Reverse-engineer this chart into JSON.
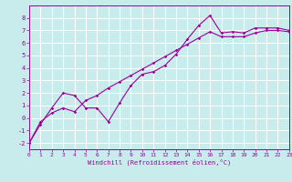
{
  "xlabel": "Windchill (Refroidissement éolien,°C)",
  "bg_color": "#c8ecec",
  "line_color": "#990099",
  "grid_color": "#ffffff",
  "x_series1": [
    0,
    1,
    2,
    3,
    4,
    5,
    6,
    7,
    8,
    9,
    10,
    11,
    12,
    13,
    14,
    15,
    16,
    17,
    18,
    19,
    20,
    21,
    22,
    23
  ],
  "y_series1": [
    -2.0,
    -0.5,
    0.8,
    2.0,
    1.8,
    0.8,
    0.8,
    -0.3,
    1.2,
    2.6,
    3.5,
    3.7,
    4.2,
    5.1,
    6.3,
    7.4,
    8.2,
    6.8,
    6.9,
    6.8,
    7.2,
    7.2,
    7.2,
    7.0
  ],
  "x_series2": [
    0,
    1,
    2,
    3,
    4,
    5,
    6,
    7,
    8,
    9,
    10,
    11,
    12,
    13,
    14,
    15,
    16,
    17,
    18,
    19,
    20,
    21,
    22,
    23
  ],
  "y_series2": [
    -2.0,
    -0.3,
    0.4,
    0.8,
    0.5,
    1.4,
    1.8,
    2.4,
    2.9,
    3.4,
    3.9,
    4.4,
    4.9,
    5.4,
    5.9,
    6.4,
    6.9,
    6.5,
    6.5,
    6.5,
    6.8,
    7.0,
    7.0,
    6.9
  ],
  "xlim": [
    0,
    23
  ],
  "ylim": [
    -2.5,
    9.0
  ],
  "yticks": [
    -2,
    -1,
    0,
    1,
    2,
    3,
    4,
    5,
    6,
    7,
    8
  ],
  "xticks": [
    0,
    1,
    2,
    3,
    4,
    5,
    6,
    7,
    8,
    9,
    10,
    11,
    12,
    13,
    14,
    15,
    16,
    17,
    18,
    19,
    20,
    21,
    22,
    23
  ]
}
